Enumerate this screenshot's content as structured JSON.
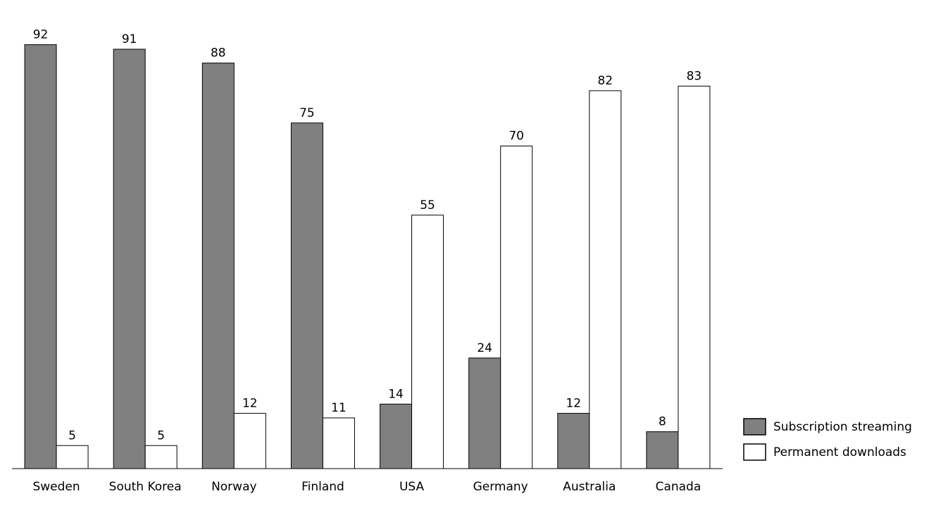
{
  "chart_data": {
    "type": "bar",
    "categories": [
      "Sweden",
      "South Korea",
      "Norway",
      "Finland",
      "USA",
      "Germany",
      "Australia",
      "Canada"
    ],
    "series": [
      {
        "name": "Subscription streaming",
        "color": "#808080",
        "values": [
          92,
          91,
          88,
          75,
          14,
          24,
          12,
          8
        ]
      },
      {
        "name": "Permanent downloads",
        "color": "#ffffff",
        "values": [
          5,
          5,
          12,
          11,
          55,
          70,
          82,
          83
        ]
      }
    ],
    "ylim": [
      0,
      100
    ],
    "legend": "right"
  }
}
